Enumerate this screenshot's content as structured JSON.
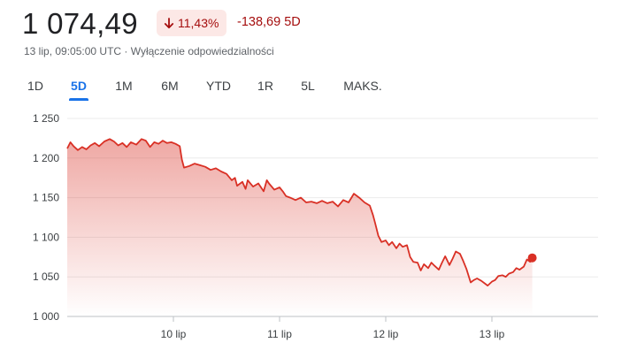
{
  "quote": {
    "price": "1 074,49",
    "change_pct": "11,43%",
    "change_abs": "-138,69 5D",
    "timestamp": "13 lip, 09:05:00 UTC",
    "separator": " · ",
    "disclaimer": "Wyłączenie odpowiedzialności",
    "trend_color": "#d93025",
    "badge_color": "#fce8e6"
  },
  "range_tabs": [
    {
      "label": "1D",
      "active": false
    },
    {
      "label": "5D",
      "active": true
    },
    {
      "label": "1M",
      "active": false
    },
    {
      "label": "6M",
      "active": false
    },
    {
      "label": "YTD",
      "active": false
    },
    {
      "label": "1R",
      "active": false
    },
    {
      "label": "5L",
      "active": false
    },
    {
      "label": "MAKS.",
      "active": false
    }
  ],
  "chart_data": {
    "type": "area",
    "title": "",
    "xlabel": "",
    "ylabel": "",
    "ylim": [
      1000,
      1250
    ],
    "xlim": [
      9.0,
      14.0
    ],
    "grid": true,
    "line_color": "#d93025",
    "y_ticks": [
      {
        "value": 1250,
        "label": "1 250"
      },
      {
        "value": 1200,
        "label": "1 200"
      },
      {
        "value": 1150,
        "label": "1 150"
      },
      {
        "value": 1100,
        "label": "1 100"
      },
      {
        "value": 1050,
        "label": "1 050"
      },
      {
        "value": 1000,
        "label": "1 000"
      }
    ],
    "x_ticks": [
      {
        "value": 10,
        "label": "10 lip"
      },
      {
        "value": 11,
        "label": "11 lip"
      },
      {
        "value": 12,
        "label": "12 lip"
      },
      {
        "value": 13,
        "label": "13 lip"
      }
    ],
    "x": [
      9.0,
      9.03,
      9.06,
      9.1,
      9.14,
      9.18,
      9.22,
      9.26,
      9.3,
      9.35,
      9.4,
      9.44,
      9.48,
      9.52,
      9.56,
      9.6,
      9.65,
      9.7,
      9.74,
      9.78,
      9.82,
      9.86,
      9.9,
      9.94,
      9.98,
      10.02,
      10.06,
      10.08,
      10.1,
      10.15,
      10.2,
      10.25,
      10.3,
      10.35,
      10.4,
      10.45,
      10.5,
      10.55,
      10.58,
      10.6,
      10.62,
      10.65,
      10.68,
      10.7,
      10.75,
      10.8,
      10.85,
      10.88,
      10.9,
      10.95,
      11.0,
      11.03,
      11.06,
      11.1,
      11.15,
      11.2,
      11.25,
      11.3,
      11.35,
      11.4,
      11.45,
      11.5,
      11.55,
      11.6,
      11.65,
      11.7,
      11.75,
      11.8,
      11.85,
      11.88,
      11.9,
      11.93,
      11.96,
      12.0,
      12.03,
      12.06,
      12.1,
      12.13,
      12.16,
      12.2,
      12.23,
      12.26,
      12.3,
      12.33,
      12.36,
      12.4,
      12.43,
      12.46,
      12.5,
      12.53,
      12.56,
      12.6,
      12.63,
      12.66,
      12.7,
      12.73,
      12.76,
      12.8,
      12.83,
      12.86,
      12.9,
      12.93,
      12.96,
      13.0,
      13.03,
      13.06,
      13.1,
      13.13,
      13.16,
      13.2,
      13.23,
      13.26,
      13.3,
      13.33,
      13.36,
      13.38
    ],
    "series": [
      {
        "values": [
          1212,
          1220,
          1215,
          1210,
          1214,
          1211,
          1216,
          1219,
          1215,
          1221,
          1224,
          1221,
          1216,
          1219,
          1214,
          1220,
          1217,
          1224,
          1222,
          1214,
          1220,
          1218,
          1222,
          1219,
          1220,
          1218,
          1215,
          1198,
          1188,
          1190,
          1193,
          1191,
          1189,
          1185,
          1187,
          1183,
          1180,
          1172,
          1175,
          1165,
          1167,
          1170,
          1161,
          1172,
          1164,
          1168,
          1158,
          1172,
          1168,
          1160,
          1163,
          1158,
          1152,
          1150,
          1147,
          1150,
          1144,
          1145,
          1143,
          1146,
          1143,
          1145,
          1139,
          1147,
          1144,
          1155,
          1150,
          1144,
          1140,
          1128,
          1118,
          1102,
          1094,
          1096,
          1090,
          1094,
          1086,
          1092,
          1088,
          1090,
          1075,
          1069,
          1068,
          1058,
          1066,
          1061,
          1068,
          1064,
          1059,
          1068,
          1076,
          1065,
          1073,
          1082,
          1079,
          1070,
          1060,
          1043,
          1046,
          1048,
          1045,
          1042,
          1039,
          1044,
          1046,
          1051,
          1052,
          1050,
          1054,
          1056,
          1061,
          1059,
          1063,
          1072,
          1069,
          1074
        ]
      }
    ],
    "last_value": 1074.49
  }
}
